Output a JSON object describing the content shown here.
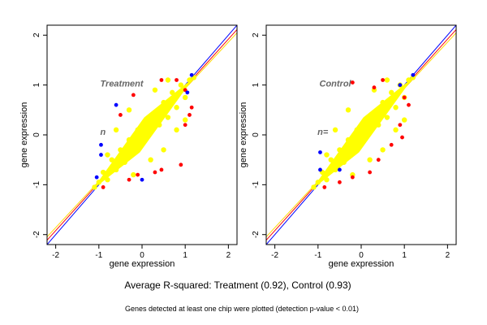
{
  "chart_data": [
    {
      "type": "scatter",
      "title": "Treatment",
      "n_label": "n",
      "xlabel": "gene expression",
      "ylabel": "gene expression",
      "xlim": [
        -2.2,
        2.2
      ],
      "ylim": [
        -2.2,
        2.2
      ],
      "xticks": [
        -2,
        -1,
        0,
        1,
        2
      ],
      "yticks": [
        -2,
        -1,
        0,
        1,
        2
      ],
      "grid": false,
      "reference_lines": [
        {
          "color": "#0000ff",
          "slope": 1.0,
          "intercept": 0.0
        },
        {
          "color": "#ff0000",
          "slope": 0.96,
          "intercept": 0.0
        },
        {
          "color": "#ffd700",
          "slope": 0.93,
          "intercept": 0.0
        }
      ],
      "series": [
        {
          "color": "#ffff00",
          "values": [
            [
              -1.1,
              -1.05
            ],
            [
              -1.0,
              -0.95
            ],
            [
              -0.9,
              -0.75
            ],
            [
              -0.8,
              -0.9
            ],
            [
              -0.7,
              -0.5
            ],
            [
              -0.6,
              -0.7
            ],
            [
              -0.5,
              -0.3
            ],
            [
              -0.4,
              -0.55
            ],
            [
              -0.3,
              -0.1
            ],
            [
              -0.2,
              -0.35
            ],
            [
              -0.1,
              0.1
            ],
            [
              0.0,
              -0.15
            ],
            [
              0.1,
              0.3
            ],
            [
              0.2,
              0.05
            ],
            [
              0.3,
              0.45
            ],
            [
              0.4,
              0.2
            ],
            [
              0.5,
              0.65
            ],
            [
              0.6,
              0.35
            ],
            [
              0.7,
              0.85
            ],
            [
              0.8,
              0.55
            ],
            [
              0.9,
              1.0
            ],
            [
              1.0,
              0.75
            ],
            [
              1.1,
              1.1
            ],
            [
              1.2,
              1.15
            ],
            [
              0.6,
              1.1
            ],
            [
              0.3,
              0.9
            ],
            [
              -0.3,
              0.5
            ],
            [
              -0.6,
              0.1
            ],
            [
              -0.8,
              -0.4
            ],
            [
              0.8,
              0.1
            ],
            [
              0.5,
              -0.3
            ],
            [
              0.2,
              -0.5
            ],
            [
              -0.2,
              -0.8
            ],
            [
              1.0,
              0.3
            ]
          ]
        },
        {
          "color": "#ff0000",
          "values": [
            [
              0.45,
              1.1
            ],
            [
              0.8,
              1.1
            ],
            [
              -0.2,
              0.8
            ],
            [
              1.0,
              0.9
            ],
            [
              1.1,
              0.4
            ],
            [
              1.0,
              0.2
            ],
            [
              0.9,
              -0.6
            ],
            [
              0.45,
              -0.7
            ],
            [
              0.3,
              -0.75
            ],
            [
              -0.1,
              -0.8
            ],
            [
              -0.3,
              -0.9
            ],
            [
              -0.9,
              -1.05
            ],
            [
              1.15,
              0.55
            ],
            [
              -0.5,
              0.4
            ]
          ]
        },
        {
          "color": "#0000ff",
          "values": [
            [
              -0.6,
              0.6
            ],
            [
              -0.95,
              -0.2
            ],
            [
              -0.95,
              -0.4
            ],
            [
              -1.05,
              -0.85
            ],
            [
              0.0,
              -0.9
            ],
            [
              1.15,
              1.2
            ],
            [
              1.05,
              0.85
            ]
          ]
        }
      ]
    },
    {
      "type": "scatter",
      "title": "Control",
      "n_label": "n=",
      "xlabel": "gene expression",
      "ylabel": "gene expression",
      "xlim": [
        -2.2,
        2.2
      ],
      "ylim": [
        -2.2,
        2.2
      ],
      "xticks": [
        -2,
        -1,
        0,
        1,
        2
      ],
      "yticks": [
        -2,
        -1,
        0,
        1,
        2
      ],
      "grid": false,
      "reference_lines": [
        {
          "color": "#0000ff",
          "slope": 1.0,
          "intercept": 0.0
        },
        {
          "color": "#ff0000",
          "slope": 0.96,
          "intercept": 0.0
        },
        {
          "color": "#ffd700",
          "slope": 0.93,
          "intercept": 0.0
        }
      ],
      "series": [
        {
          "color": "#ffff00",
          "values": [
            [
              -1.1,
              -1.05
            ],
            [
              -1.0,
              -0.95
            ],
            [
              -0.9,
              -0.75
            ],
            [
              -0.8,
              -0.9
            ],
            [
              -0.7,
              -0.5
            ],
            [
              -0.6,
              -0.7
            ],
            [
              -0.5,
              -0.3
            ],
            [
              -0.4,
              -0.55
            ],
            [
              -0.3,
              -0.1
            ],
            [
              -0.2,
              -0.35
            ],
            [
              -0.1,
              0.1
            ],
            [
              0.0,
              -0.15
            ],
            [
              0.1,
              0.3
            ],
            [
              0.2,
              0.05
            ],
            [
              0.3,
              0.45
            ],
            [
              0.4,
              0.2
            ],
            [
              0.5,
              0.65
            ],
            [
              0.6,
              0.35
            ],
            [
              0.7,
              0.85
            ],
            [
              0.8,
              0.55
            ],
            [
              0.9,
              1.0
            ],
            [
              1.0,
              0.75
            ],
            [
              1.1,
              1.1
            ],
            [
              1.2,
              1.15
            ],
            [
              0.6,
              1.1
            ],
            [
              0.3,
              0.9
            ],
            [
              -0.3,
              0.5
            ],
            [
              -0.6,
              0.1
            ],
            [
              -0.8,
              -0.4
            ],
            [
              0.8,
              0.1
            ],
            [
              0.5,
              -0.3
            ],
            [
              0.2,
              -0.5
            ],
            [
              -0.2,
              -0.8
            ],
            [
              1.0,
              0.3
            ]
          ]
        },
        {
          "color": "#ff0000",
          "values": [
            [
              -0.2,
              1.05
            ],
            [
              0.3,
              0.95
            ],
            [
              0.5,
              1.1
            ],
            [
              1.0,
              0.75
            ],
            [
              1.1,
              0.6
            ],
            [
              0.9,
              0.2
            ],
            [
              0.7,
              -0.2
            ],
            [
              0.4,
              -0.5
            ],
            [
              0.2,
              -0.75
            ],
            [
              -0.2,
              -0.85
            ],
            [
              -0.5,
              -0.95
            ],
            [
              -0.85,
              -1.05
            ],
            [
              0.95,
              -0.05
            ]
          ]
        },
        {
          "color": "#0000ff",
          "values": [
            [
              -0.95,
              -0.35
            ],
            [
              -0.95,
              -0.7
            ],
            [
              -0.5,
              -0.7
            ],
            [
              1.2,
              1.2
            ],
            [
              0.9,
              1.0
            ]
          ]
        }
      ]
    }
  ],
  "caption": {
    "main": "Average R-squared: Treatment (0.92), Control (0.93)",
    "sub": "Genes detected at least one chip were plotted (detection p-value < 0.01)"
  }
}
